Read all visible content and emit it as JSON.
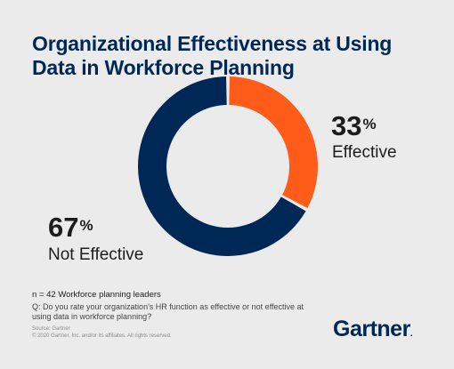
{
  "title_lines": [
    "Organizational Effectiveness at Using",
    "Data in Workforce Planning"
  ],
  "chart_data": {
    "type": "pie",
    "title": "Organizational Effectiveness at Using Data in Workforce Planning",
    "categories": [
      "Effective",
      "Not Effective"
    ],
    "values": [
      33,
      67
    ],
    "colors": [
      "#ff5c1a",
      "#002856"
    ],
    "unit": "%",
    "legend": "none"
  },
  "labels": {
    "effective_pct": "33",
    "effective_text": "Effective",
    "not_effective_pct": "67",
    "not_effective_text": "Not Effective",
    "percent_sign": "%"
  },
  "footnote": {
    "sample": "n = 42 Workforce planning leaders",
    "question": "Q: Do you rate your organization's HR function as effective or not effective at using data in workforce planning?",
    "source": "Source: Gartner",
    "copyright": "© 2020 Gartner, Inc. and/or its affiliates. All rights reserved."
  },
  "brand": {
    "logo_text": "Gartner",
    "logo_mark": "."
  }
}
